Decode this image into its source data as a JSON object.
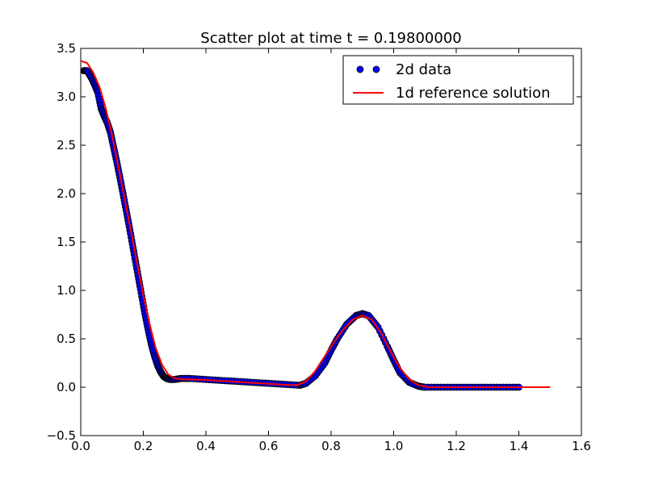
{
  "chart_data": {
    "type": "scatter",
    "title": "Scatter plot at time t =     0.19800000",
    "xlabel": "",
    "ylabel": "",
    "xlim": [
      0.0,
      1.6
    ],
    "ylim": [
      -0.5,
      3.5
    ],
    "x_ticks": [
      "0.0",
      "0.2",
      "0.4",
      "0.6",
      "0.8",
      "1.0",
      "1.2",
      "1.4",
      "1.6"
    ],
    "y_ticks": [
      "−0.5",
      "0.0",
      "0.5",
      "1.0",
      "1.5",
      "2.0",
      "2.5",
      "3.0",
      "3.5"
    ],
    "grid": false,
    "legend_position": "top-right",
    "series": [
      {
        "name": "2d data",
        "kind": "scatter",
        "color": "#0000ff",
        "edge_color": "#000000",
        "x": [
          0.01,
          0.02,
          0.035,
          0.045,
          0.055,
          0.065,
          0.075,
          0.085,
          0.095,
          0.105,
          0.115,
          0.125,
          0.135,
          0.145,
          0.155,
          0.165,
          0.175,
          0.185,
          0.195,
          0.205,
          0.215,
          0.225,
          0.235,
          0.245,
          0.255,
          0.265,
          0.275,
          0.285,
          0.3,
          0.32,
          0.35,
          0.4,
          0.45,
          0.5,
          0.55,
          0.6,
          0.65,
          0.7,
          0.72,
          0.75,
          0.78,
          0.8,
          0.82,
          0.85,
          0.88,
          0.9,
          0.92,
          0.95,
          0.98,
          1.0,
          1.02,
          1.05,
          1.08,
          1.1,
          1.15,
          1.2,
          1.25,
          1.3,
          1.35,
          1.4
        ],
        "y": [
          3.27,
          3.27,
          3.19,
          3.12,
          3.04,
          2.88,
          2.8,
          2.73,
          2.63,
          2.48,
          2.33,
          2.17,
          2.0,
          1.83,
          1.66,
          1.48,
          1.3,
          1.12,
          0.94,
          0.76,
          0.6,
          0.45,
          0.33,
          0.23,
          0.16,
          0.11,
          0.09,
          0.08,
          0.08,
          0.09,
          0.09,
          0.08,
          0.07,
          0.06,
          0.05,
          0.04,
          0.03,
          0.02,
          0.04,
          0.12,
          0.25,
          0.38,
          0.5,
          0.65,
          0.74,
          0.76,
          0.74,
          0.62,
          0.42,
          0.28,
          0.15,
          0.05,
          0.01,
          0.0,
          0.0,
          0.0,
          0.0,
          0.0,
          0.0,
          0.0
        ]
      },
      {
        "name": "1d reference solution",
        "kind": "line",
        "color": "#ff0000",
        "x": [
          0.0,
          0.02,
          0.04,
          0.06,
          0.08,
          0.1,
          0.12,
          0.14,
          0.16,
          0.18,
          0.2,
          0.22,
          0.24,
          0.26,
          0.28,
          0.3,
          0.33,
          0.36,
          0.4,
          0.45,
          0.5,
          0.55,
          0.6,
          0.65,
          0.69,
          0.72,
          0.75,
          0.78,
          0.81,
          0.84,
          0.87,
          0.9,
          0.93,
          0.96,
          0.99,
          1.02,
          1.05,
          1.08,
          1.11,
          1.15,
          1.2,
          1.3,
          1.4,
          1.5
        ],
        "y": [
          3.37,
          3.35,
          3.25,
          3.1,
          2.88,
          2.6,
          2.28,
          1.95,
          1.62,
          1.28,
          0.95,
          0.65,
          0.4,
          0.23,
          0.13,
          0.09,
          0.08,
          0.08,
          0.075,
          0.065,
          0.055,
          0.045,
          0.035,
          0.025,
          0.02,
          0.06,
          0.17,
          0.32,
          0.47,
          0.6,
          0.7,
          0.74,
          0.7,
          0.56,
          0.37,
          0.2,
          0.08,
          0.02,
          0.0,
          0.0,
          0.0,
          0.0,
          0.0,
          0.0
        ]
      }
    ]
  }
}
